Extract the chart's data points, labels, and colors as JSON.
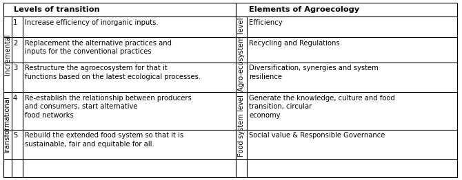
{
  "header_left": "Levels of transition",
  "header_right": "Elements of Agroecology",
  "rows": [
    {
      "num": "1",
      "description": "Increase efficiency of inorganic inputs.",
      "element": "Efficiency"
    },
    {
      "num": "2",
      "description": "Replacement the alternative practices and\ninputs for the conventional practices",
      "element": "Recycling and Regulations"
    },
    {
      "num": "3",
      "description": "Restructure the agroecosystem for that it\nfunctions based on the latest ecological processes.",
      "element": "Diversification, synergies and system\nresilience"
    },
    {
      "num": "4",
      "description": "Re-establish the relationship between producers\nand consumers, start alternative\nfood networks",
      "element": "Generate the knowledge, culture and food\ntransition, circular\neconomy"
    },
    {
      "num": "5",
      "description": "Rebuild the extended food system so that it is\nsustainable, fair and equitable for all.",
      "element": "Social value & Responsible Governance"
    }
  ],
  "group_left_labels": [
    "Incremental",
    "Transformational"
  ],
  "group_right_labels": [
    "Agro-ecosystem level",
    "Food system level"
  ],
  "bg_color": "#ffffff",
  "border_color": "#000000",
  "text_color": "#000000",
  "font_size": 7.2,
  "header_font_size": 8.2
}
